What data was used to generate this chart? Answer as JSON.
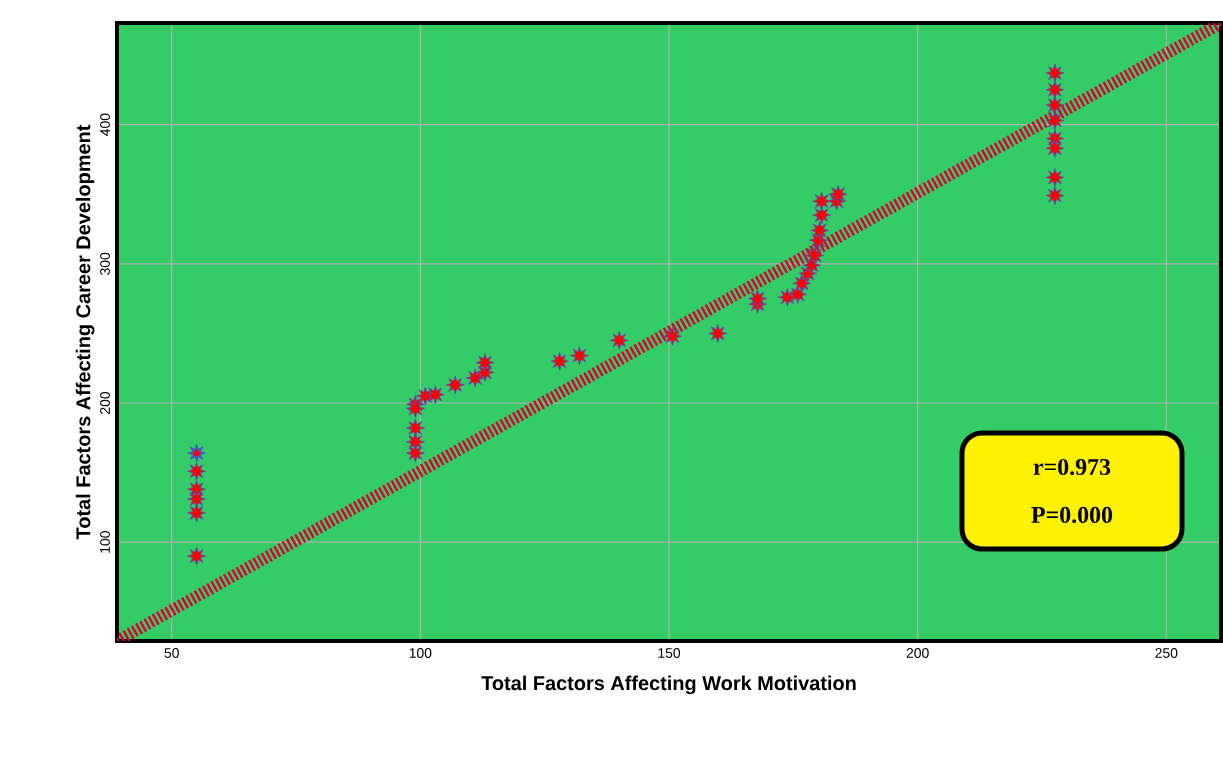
{
  "chart_data": {
    "type": "scatter",
    "xlabel": "Total Factors Affecting Work Motivation",
    "ylabel": "Total Factors Affecting  Career Development",
    "xlim": [
      39,
      261
    ],
    "ylim": [
      29,
      473
    ],
    "xticks": [
      50,
      100,
      150,
      200,
      250
    ],
    "yticks": [
      100,
      200,
      300,
      400
    ],
    "grid": true,
    "marker": "star",
    "series": [
      {
        "color": "#5050c0",
        "x": [
          55,
          55,
          55,
          55,
          55,
          55,
          99,
          99,
          99,
          99,
          99,
          101,
          103,
          107,
          111,
          113,
          113,
          128,
          132,
          140,
          150.7,
          159.8,
          167.8,
          167.8,
          173.8,
          175.9,
          176.7,
          177.9,
          178.7,
          179.3,
          180,
          180.3,
          180.7,
          180.7,
          183.7,
          184,
          227.6,
          227.6,
          227.6,
          227.6,
          227.6,
          227.6,
          227.6,
          227.6
        ],
        "values": [
          164,
          151,
          138,
          131,
          121,
          90,
          199,
          196,
          182,
          172,
          164,
          205,
          206,
          213,
          218,
          222,
          229,
          230,
          234,
          245,
          248,
          250,
          271,
          275,
          276,
          278,
          286,
          293,
          299,
          306,
          317,
          324,
          335,
          345,
          345,
          350,
          437,
          425,
          414,
          403,
          390,
          383,
          362,
          349
        ]
      },
      {
        "type": "line",
        "color": "#dd0033",
        "line_style": "dashed",
        "marker": "none",
        "x": [
          39,
          261
        ],
        "values": [
          29,
          473
        ]
      }
    ],
    "annotations": [
      "r=0.973",
      "P=0.000"
    ]
  }
}
